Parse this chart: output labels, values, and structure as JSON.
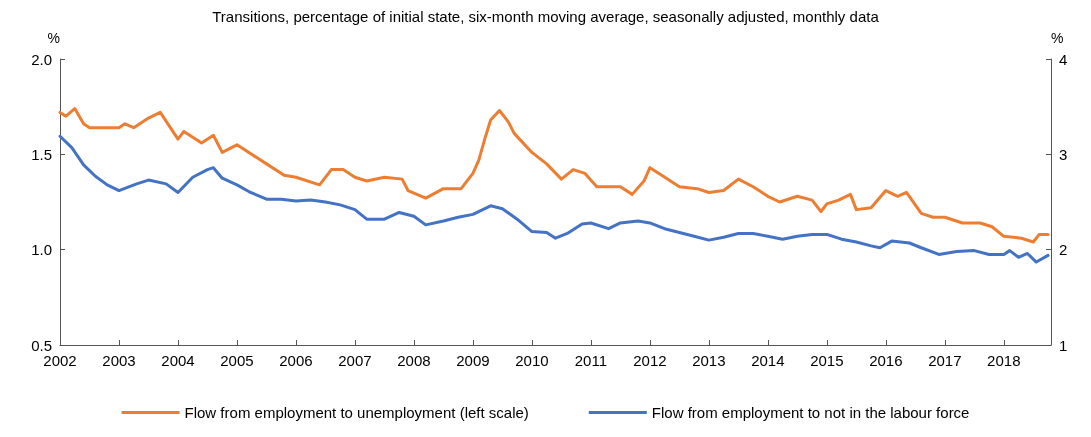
{
  "chart_data": {
    "type": "line",
    "subtitle": "Transitions, percentage of initial state, six-month moving average, seasonally adjusted, monthly data",
    "ylabel": "%",
    "y2label": "%",
    "xlim": [
      2002,
      2018.8
    ],
    "xticks": [
      2002,
      2003,
      2004,
      2005,
      2006,
      2007,
      2008,
      2009,
      2010,
      2011,
      2012,
      2013,
      2014,
      2015,
      2016,
      2017,
      2018
    ],
    "ylim": [
      0.5,
      2
    ],
    "yticks": [
      0.5,
      {
        "value": 1,
        "label": "1.0"
      },
      1.5,
      {
        "value": 2,
        "label": "2.0"
      }
    ],
    "y2lim": [
      1,
      4
    ],
    "y2ticks": [
      1,
      2,
      3,
      4
    ],
    "grid": false,
    "legend": "bottom",
    "marker": "none",
    "line_style": "solid",
    "series": [
      {
        "name": "Flow from employment to unemployment (left scale)",
        "color": "#ed7d31",
        "x": [
          2002.0,
          2002.1,
          2002.25,
          2002.4,
          2002.5,
          2003.0,
          2003.1,
          2003.25,
          2003.5,
          2003.7,
          2004.0,
          2004.1,
          2004.4,
          2004.6,
          2004.75,
          2005.0,
          2005.5,
          2005.8,
          2006.0,
          2006.4,
          2006.6,
          2006.8,
          2007.0,
          2007.2,
          2007.5,
          2007.8,
          2007.9,
          2008.2,
          2008.5,
          2008.8,
          2009.0,
          2009.1,
          2009.2,
          2009.3,
          2009.45,
          2009.6,
          2009.7,
          2010.0,
          2010.25,
          2010.5,
          2010.7,
          2010.9,
          2011.1,
          2011.5,
          2011.7,
          2011.9,
          2012.0,
          2012.2,
          2012.5,
          2012.8,
          2013.0,
          2013.25,
          2013.5,
          2013.75,
          2014.0,
          2014.2,
          2014.5,
          2014.75,
          2014.9,
          2015.0,
          2015.2,
          2015.4,
          2015.5,
          2015.75,
          2016.0,
          2016.2,
          2016.35,
          2016.6,
          2016.8,
          2017.0,
          2017.3,
          2017.6,
          2017.8,
          2018.0,
          2018.3,
          2018.5,
          2018.6,
          2018.75
        ],
        "values": [
          1.72,
          1.7,
          1.74,
          1.66,
          1.64,
          1.64,
          1.66,
          1.64,
          1.69,
          1.72,
          1.58,
          1.62,
          1.56,
          1.6,
          1.51,
          1.55,
          1.45,
          1.39,
          1.38,
          1.34,
          1.42,
          1.42,
          1.38,
          1.36,
          1.38,
          1.37,
          1.31,
          1.27,
          1.32,
          1.32,
          1.4,
          1.47,
          1.58,
          1.68,
          1.73,
          1.67,
          1.61,
          1.51,
          1.45,
          1.37,
          1.42,
          1.4,
          1.33,
          1.33,
          1.29,
          1.36,
          1.43,
          1.39,
          1.33,
          1.32,
          1.3,
          1.31,
          1.37,
          1.33,
          1.28,
          1.25,
          1.28,
          1.26,
          1.2,
          1.24,
          1.26,
          1.29,
          1.21,
          1.22,
          1.31,
          1.28,
          1.3,
          1.19,
          1.17,
          1.17,
          1.14,
          1.14,
          1.12,
          1.07,
          1.06,
          1.04,
          1.08,
          1.08
        ]
      },
      {
        "name": "Flow from employment to not in the labour force",
        "color": "#4472c4",
        "axis": "y2",
        "x": [
          2002.0,
          2002.2,
          2002.4,
          2002.6,
          2002.8,
          2003.0,
          2003.3,
          2003.5,
          2003.8,
          2004.0,
          2004.25,
          2004.5,
          2004.6,
          2004.75,
          2005.0,
          2005.2,
          2005.5,
          2005.75,
          2006.0,
          2006.25,
          2006.5,
          2006.75,
          2007.0,
          2007.2,
          2007.5,
          2007.75,
          2008.0,
          2008.2,
          2008.5,
          2008.75,
          2009.0,
          2009.3,
          2009.5,
          2009.75,
          2010.0,
          2010.25,
          2010.4,
          2010.6,
          2010.85,
          2011.0,
          2011.3,
          2011.5,
          2011.8,
          2012.0,
          2012.25,
          2012.5,
          2012.75,
          2013.0,
          2013.25,
          2013.5,
          2013.75,
          2014.0,
          2014.25,
          2014.5,
          2014.75,
          2015.0,
          2015.25,
          2015.5,
          2015.75,
          2015.9,
          2016.1,
          2016.4,
          2016.6,
          2016.9,
          2017.2,
          2017.5,
          2017.75,
          2018.0,
          2018.1,
          2018.25,
          2018.4,
          2018.55,
          2018.75
        ],
        "values": [
          3.19,
          3.07,
          2.89,
          2.77,
          2.68,
          2.62,
          2.69,
          2.73,
          2.69,
          2.6,
          2.76,
          2.84,
          2.86,
          2.75,
          2.68,
          2.61,
          2.53,
          2.53,
          2.51,
          2.52,
          2.5,
          2.47,
          2.42,
          2.32,
          2.32,
          2.39,
          2.35,
          2.26,
          2.3,
          2.34,
          2.37,
          2.46,
          2.43,
          2.32,
          2.19,
          2.18,
          2.12,
          2.17,
          2.27,
          2.28,
          2.22,
          2.28,
          2.3,
          2.28,
          2.22,
          2.18,
          2.14,
          2.1,
          2.13,
          2.17,
          2.17,
          2.14,
          2.11,
          2.14,
          2.16,
          2.16,
          2.11,
          2.08,
          2.04,
          2.02,
          2.09,
          2.07,
          2.02,
          1.95,
          1.98,
          1.99,
          1.95,
          1.95,
          1.99,
          1.92,
          1.96,
          1.87,
          1.94
        ]
      }
    ]
  }
}
